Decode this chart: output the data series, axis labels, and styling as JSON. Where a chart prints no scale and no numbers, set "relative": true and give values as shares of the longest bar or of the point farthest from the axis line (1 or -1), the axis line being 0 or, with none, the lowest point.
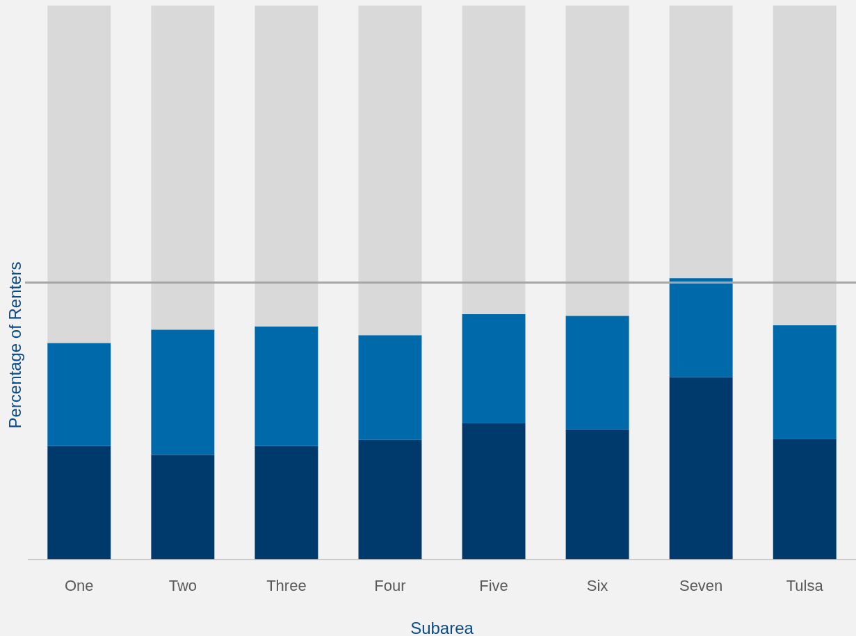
{
  "chart_data": {
    "type": "bar",
    "stacked": true,
    "relative": true,
    "xlabel": "Subarea",
    "ylabel": "Percentage of Renters",
    "categories": [
      "One",
      "Two",
      "Three",
      "Four",
      "Five",
      "Six",
      "Seven",
      "Tulsa"
    ],
    "series": [
      {
        "color": "#003a6c",
        "values": [
          0.205,
          0.189,
          0.205,
          0.216,
          0.246,
          0.235,
          0.329,
          0.218
        ]
      },
      {
        "color": "#0069aa",
        "values": [
          0.186,
          0.226,
          0.216,
          0.189,
          0.197,
          0.205,
          0.179,
          0.205
        ]
      },
      {
        "color": "#d9d9d9",
        "values": [
          0.609,
          0.585,
          0.579,
          0.595,
          0.557,
          0.56,
          0.492,
          0.577
        ]
      }
    ],
    "ref_lines": [
      {
        "axis": "y",
        "value": 0.5,
        "color": "#a6a6a6"
      }
    ]
  }
}
